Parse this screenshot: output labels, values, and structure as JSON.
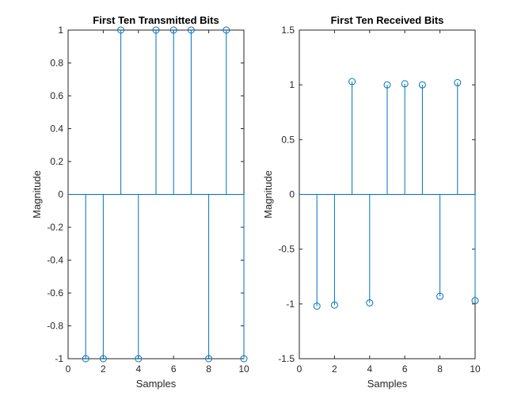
{
  "chart_data": [
    {
      "type": "stem",
      "title": "First Ten Transmitted Bits",
      "xlabel": "Samples",
      "ylabel": "Magnitude",
      "xlim": [
        0,
        10
      ],
      "ylim": [
        -1,
        1
      ],
      "xticks": [
        0,
        2,
        4,
        6,
        8,
        10
      ],
      "xtick_labels": [
        "0",
        "2",
        "4",
        "6",
        "8",
        "10"
      ],
      "yticks": [
        -1,
        -0.8,
        -0.6,
        -0.4,
        -0.2,
        0,
        0.2,
        0.4,
        0.6,
        0.8,
        1
      ],
      "ytick_labels": [
        "-1",
        "-0.8",
        "-0.6",
        "-0.4",
        "-0.2",
        "0",
        "0.2",
        "0.4",
        "0.6",
        "0.8",
        "1"
      ],
      "grid": false,
      "x": [
        1,
        2,
        3,
        4,
        5,
        6,
        7,
        8,
        9,
        10
      ],
      "y": [
        -1,
        -1,
        1,
        -1,
        1,
        1,
        1,
        -1,
        1,
        -1
      ],
      "color": "#0072BD"
    },
    {
      "type": "stem",
      "title": "First Ten Received Bits",
      "xlabel": "Samples",
      "ylabel": "Magnitude",
      "xlim": [
        0,
        10
      ],
      "ylim": [
        -1.5,
        1.5
      ],
      "xticks": [
        0,
        2,
        4,
        6,
        8,
        10
      ],
      "xtick_labels": [
        "0",
        "2",
        "4",
        "6",
        "8",
        "10"
      ],
      "yticks": [
        -1.5,
        -1,
        -0.5,
        0,
        0.5,
        1,
        1.5
      ],
      "ytick_labels": [
        "-1.5",
        "-1",
        "-0.5",
        "0",
        "0.5",
        "1",
        "1.5"
      ],
      "grid": false,
      "x": [
        1,
        2,
        3,
        4,
        5,
        6,
        7,
        8,
        9,
        10
      ],
      "y": [
        -1.02,
        -1.01,
        1.03,
        -0.99,
        1.0,
        1.01,
        1.0,
        -0.93,
        1.02,
        -0.97
      ],
      "color": "#0072BD"
    }
  ]
}
